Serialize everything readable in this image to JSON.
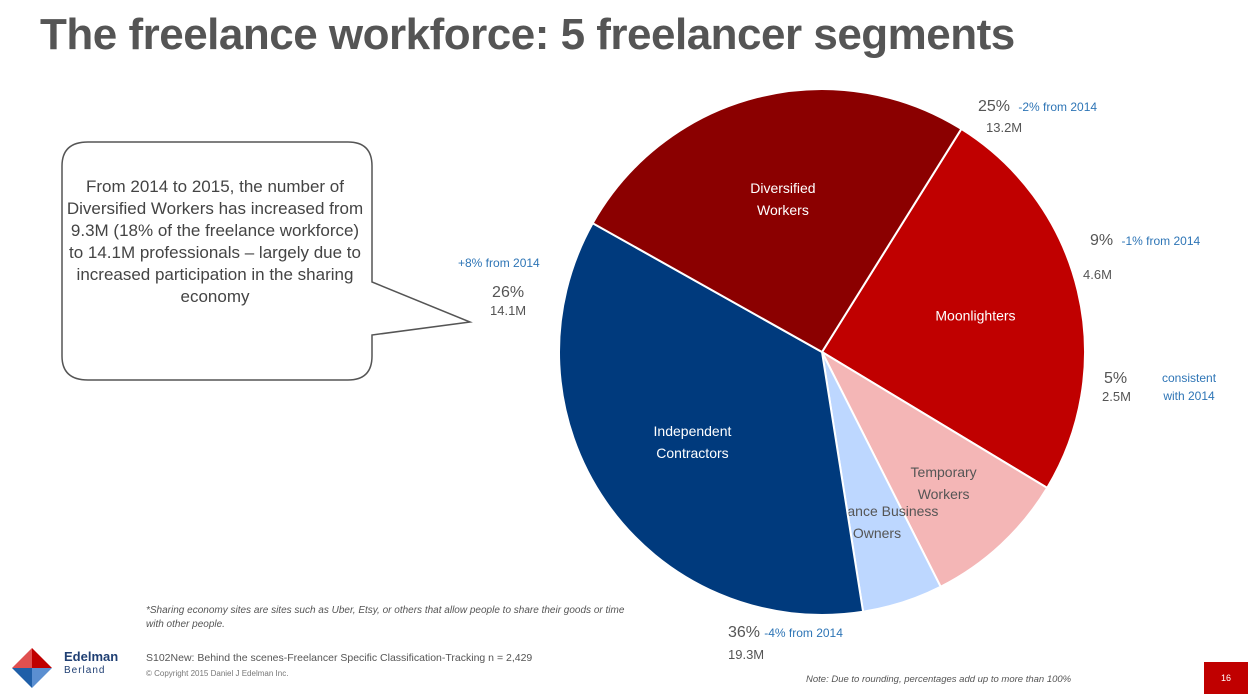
{
  "title": "The freelance workforce: 5 freelancer segments",
  "callout": "From 2014 to 2015, the number of Diversified Workers has increased from 9.3M (18% of the freelance workforce) to 14.1M professionals – largely due to increased participation in the sharing economy",
  "chart_data": {
    "type": "pie",
    "title": "",
    "slices": [
      {
        "name": "Moonlighters",
        "percent": 25,
        "percent_label": "25%",
        "value_label": "13.2M",
        "change": "-2% from 2014",
        "color": "#c00000",
        "label_lines": [
          "Moonlighters"
        ]
      },
      {
        "name": "Temporary Workers",
        "percent": 9,
        "percent_label": "9%",
        "value_label": "4.6M",
        "change": "-1% from 2014",
        "color": "#f4b6b6",
        "label_lines": [
          "Temporary",
          "Workers"
        ]
      },
      {
        "name": "Freelance Business Owners",
        "percent": 5,
        "percent_label": "5%",
        "value_label": "2.5M",
        "change": "consistent with 2014",
        "change_lines": [
          "consistent",
          "with 2014"
        ],
        "color": "#bdd7ff",
        "label_lines": [
          "Freelance Business",
          "Owners"
        ]
      },
      {
        "name": "Independent Contractors",
        "percent": 36,
        "percent_label": "36%",
        "value_label": "19.3M",
        "change": "-4% from 2014",
        "color": "#003a7d",
        "label_lines": [
          "Independent",
          "Contractors"
        ]
      },
      {
        "name": "Diversified Workers",
        "percent": 26,
        "percent_label": "26%",
        "value_label": "14.1M",
        "change": "+8% from 2014",
        "color": "#8b0000",
        "label_lines": [
          "Diversified",
          "Workers"
        ]
      }
    ]
  },
  "footnote": "*Sharing economy sites are sites such as Uber, Etsy, or others that allow people to share their goods or time with other people.",
  "source": "S102New: Behind the scenes-Freelancer Specific Classification-Tracking n = 2,429",
  "copyright": "© Copyright 2015 Daniel J Edelman Inc.",
  "note": "Note: Due to rounding, percentages add up to more than 100%",
  "page_number": "16",
  "logo": {
    "line1": "Edelman",
    "line2": "Berland",
    "colors": [
      "#c00000",
      "#1f5fa8"
    ]
  }
}
